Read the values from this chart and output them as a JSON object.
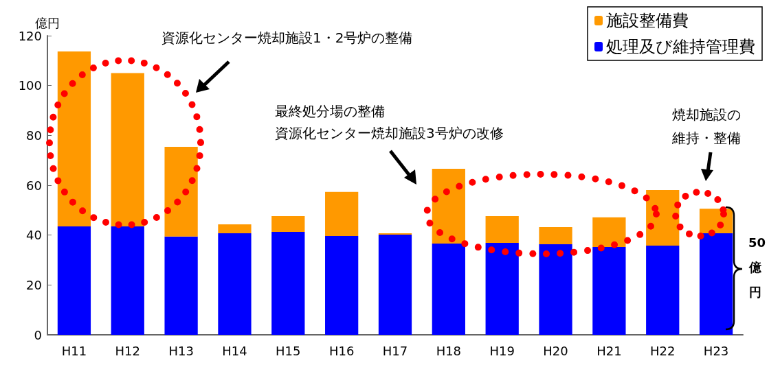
{
  "chart_data": {
    "type": "bar",
    "stacked": true,
    "ylabel": "億円",
    "categories": [
      "H11",
      "H12",
      "H13",
      "H14",
      "H15",
      "H16",
      "H17",
      "H18",
      "H19",
      "H20",
      "H21",
      "H22",
      "H23"
    ],
    "series": [
      {
        "name": "処理及び維持管理費",
        "color": "#0000ff",
        "values": [
          43.5,
          43.5,
          39.4,
          40.7,
          41.3,
          39.6,
          40.2,
          36.6,
          36.9,
          36.3,
          35.2,
          35.8,
          40.7
        ]
      },
      {
        "name": "施設整備費",
        "color": "#ff9900",
        "values": [
          70.2,
          61.5,
          36.0,
          3.6,
          6.3,
          17.7,
          0.5,
          30.0,
          10.7,
          6.9,
          11.9,
          22.3,
          9.9
        ]
      }
    ],
    "ylim": [
      0,
      120
    ],
    "yticks": [
      0,
      20,
      40,
      60,
      80,
      100,
      120
    ],
    "grid": false,
    "legend": "top right",
    "annotations": [
      "資源化センター焼却施設1・2号炉の整備",
      "最終処分場の整備",
      "資源化センター焼却施設3号炉の改修",
      "焼却施設の",
      "維持・整備",
      "50",
      "億",
      "円"
    ]
  }
}
